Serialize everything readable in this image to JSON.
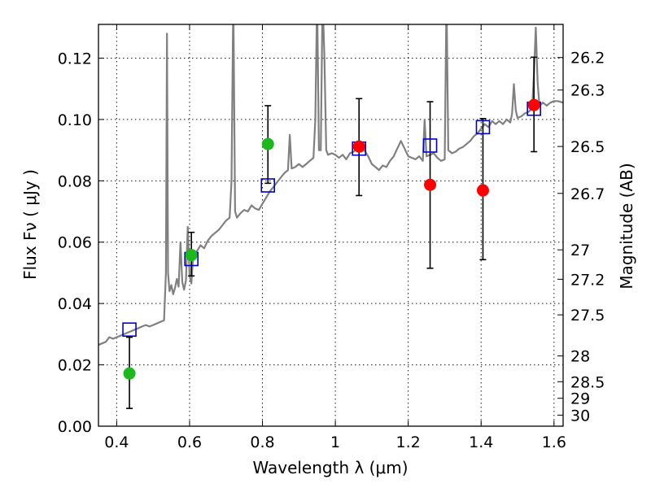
{
  "chart_data": {
    "type": "scatter",
    "title": "",
    "xlabel": "Wavelength  λ (μm)",
    "ylabel": "Flux  Fν  ( μJy )",
    "ylabel_right": "Magnitude (AB)",
    "xlim": [
      0.35,
      1.625
    ],
    "ylim": [
      0.0,
      0.131
    ],
    "grid": true,
    "x_ticks": [
      0.4,
      0.6,
      0.8,
      1.0,
      1.2,
      1.4,
      1.6
    ],
    "x_tick_labels": [
      "0.4",
      "0.6",
      "0.8",
      "1",
      "1.2",
      "1.4",
      "1.6"
    ],
    "y_ticks": [
      0.0,
      0.02,
      0.04,
      0.06,
      0.08,
      0.1,
      0.12
    ],
    "y_tick_labels": [
      "0.00",
      "0.02",
      "0.04",
      "0.06",
      "0.08",
      "0.10",
      "0.12"
    ],
    "right_ticks": [
      {
        "flux": 0.1202,
        "label": "26.2"
      },
      {
        "flux": 0.1096,
        "label": "26.3"
      },
      {
        "flux": 0.0912,
        "label": "26.5"
      },
      {
        "flux": 0.0759,
        "label": "26.7"
      },
      {
        "flux": 0.0575,
        "label": "27"
      },
      {
        "flux": 0.0479,
        "label": "27.2"
      },
      {
        "flux": 0.0363,
        "label": "27.5"
      },
      {
        "flux": 0.0229,
        "label": "28"
      },
      {
        "flux": 0.0145,
        "label": "28.5"
      },
      {
        "flux": 0.0091,
        "label": "29"
      },
      {
        "flux": 0.0036,
        "label": "30"
      }
    ],
    "colors": {
      "spectrum": "#808080",
      "model": "#0000cc",
      "green": "#1db81d",
      "red": "#ff0000",
      "errorbar": "#000000"
    },
    "series": [
      {
        "kind": "spectrum",
        "points": [
          [
            0.35,
            0.0265
          ],
          [
            0.36,
            0.027
          ],
          [
            0.37,
            0.0275
          ],
          [
            0.38,
            0.029
          ],
          [
            0.39,
            0.0285
          ],
          [
            0.4,
            0.029
          ],
          [
            0.41,
            0.0295
          ],
          [
            0.42,
            0.03
          ],
          [
            0.43,
            0.0305
          ],
          [
            0.44,
            0.031
          ],
          [
            0.45,
            0.0315
          ],
          [
            0.46,
            0.032
          ],
          [
            0.47,
            0.0325
          ],
          [
            0.48,
            0.033
          ],
          [
            0.49,
            0.0325
          ],
          [
            0.5,
            0.033
          ],
          [
            0.51,
            0.0335
          ],
          [
            0.52,
            0.034
          ],
          [
            0.53,
            0.0345
          ],
          [
            0.535,
            0.05
          ],
          [
            0.538,
            0.128
          ],
          [
            0.541,
            0.05
          ],
          [
            0.545,
            0.044
          ],
          [
            0.55,
            0.046
          ],
          [
            0.555,
            0.043
          ],
          [
            0.56,
            0.045
          ],
          [
            0.565,
            0.048
          ],
          [
            0.57,
            0.0455
          ],
          [
            0.575,
            0.06
          ],
          [
            0.58,
            0.047
          ],
          [
            0.585,
            0.0445
          ],
          [
            0.59,
            0.0475
          ],
          [
            0.595,
            0.065
          ],
          [
            0.6,
            0.049
          ],
          [
            0.605,
            0.0465
          ],
          [
            0.61,
            0.056
          ],
          [
            0.62,
            0.057
          ],
          [
            0.63,
            0.059
          ],
          [
            0.64,
            0.058
          ],
          [
            0.65,
            0.0605
          ],
          [
            0.66,
            0.062
          ],
          [
            0.67,
            0.063
          ],
          [
            0.68,
            0.064
          ],
          [
            0.69,
            0.0655
          ],
          [
            0.7,
            0.067
          ],
          [
            0.71,
            0.068
          ],
          [
            0.715,
            0.08
          ],
          [
            0.72,
            0.14
          ],
          [
            0.725,
            0.07
          ],
          [
            0.73,
            0.068
          ],
          [
            0.74,
            0.0695
          ],
          [
            0.75,
            0.0705
          ],
          [
            0.76,
            0.07
          ],
          [
            0.77,
            0.072
          ],
          [
            0.78,
            0.071
          ],
          [
            0.79,
            0.0705
          ],
          [
            0.8,
            0.0725
          ],
          [
            0.81,
            0.0745
          ],
          [
            0.82,
            0.0765
          ],
          [
            0.83,
            0.078
          ],
          [
            0.84,
            0.0795
          ],
          [
            0.85,
            0.081
          ],
          [
            0.86,
            0.0825
          ],
          [
            0.87,
            0.0835
          ],
          [
            0.875,
            0.095
          ],
          [
            0.88,
            0.084
          ],
          [
            0.89,
            0.0845
          ],
          [
            0.9,
            0.0855
          ],
          [
            0.91,
            0.0845
          ],
          [
            0.92,
            0.0855
          ],
          [
            0.93,
            0.0865
          ],
          [
            0.94,
            0.0875
          ],
          [
            0.945,
            0.1
          ],
          [
            0.95,
            0.14
          ],
          [
            0.955,
            0.09
          ],
          [
            0.96,
            0.09
          ],
          [
            0.965,
            0.14
          ],
          [
            0.97,
            0.12
          ],
          [
            0.975,
            0.09
          ],
          [
            0.98,
            0.0885
          ],
          [
            0.99,
            0.089
          ],
          [
            1.0,
            0.0885
          ],
          [
            1.01,
            0.0875
          ],
          [
            1.02,
            0.0885
          ],
          [
            1.03,
            0.087
          ],
          [
            1.04,
            0.089
          ],
          [
            1.05,
            0.0895
          ],
          [
            1.06,
            0.0905
          ],
          [
            1.07,
            0.0895
          ],
          [
            1.08,
            0.09
          ],
          [
            1.09,
            0.088
          ],
          [
            1.1,
            0.0855
          ],
          [
            1.11,
            0.0845
          ],
          [
            1.12,
            0.0835
          ],
          [
            1.13,
            0.085
          ],
          [
            1.14,
            0.0845
          ],
          [
            1.15,
            0.0865
          ],
          [
            1.16,
            0.088
          ],
          [
            1.17,
            0.0905
          ],
          [
            1.18,
            0.093
          ],
          [
            1.19,
            0.0905
          ],
          [
            1.2,
            0.088
          ],
          [
            1.21,
            0.0875
          ],
          [
            1.22,
            0.087
          ],
          [
            1.23,
            0.088
          ],
          [
            1.24,
            0.0865
          ],
          [
            1.245,
            0.1
          ],
          [
            1.25,
            0.088
          ],
          [
            1.26,
            0.0885
          ],
          [
            1.27,
            0.089
          ],
          [
            1.28,
            0.0875
          ],
          [
            1.29,
            0.0865
          ],
          [
            1.3,
            0.087
          ],
          [
            1.305,
            0.14
          ],
          [
            1.31,
            0.09
          ],
          [
            1.32,
            0.089
          ],
          [
            1.33,
            0.0895
          ],
          [
            1.34,
            0.0905
          ],
          [
            1.35,
            0.091
          ],
          [
            1.36,
            0.092
          ],
          [
            1.37,
            0.093
          ],
          [
            1.38,
            0.0945
          ],
          [
            1.39,
            0.0955
          ],
          [
            1.4,
            0.097
          ],
          [
            1.41,
            0.0985
          ],
          [
            1.42,
            0.0975
          ],
          [
            1.43,
            0.0995
          ],
          [
            1.44,
            0.0985
          ],
          [
            1.45,
            0.0995
          ],
          [
            1.46,
            0.0985
          ],
          [
            1.47,
            0.1
          ],
          [
            1.48,
            0.099
          ],
          [
            1.485,
            0.102
          ],
          [
            1.49,
            0.1115
          ],
          [
            1.495,
            0.103
          ],
          [
            1.5,
            0.1005
          ],
          [
            1.51,
            0.101
          ],
          [
            1.52,
            0.102
          ],
          [
            1.53,
            0.1025
          ],
          [
            1.54,
            0.1035
          ],
          [
            1.545,
            0.115
          ],
          [
            1.55,
            0.13
          ],
          [
            1.555,
            0.112
          ],
          [
            1.56,
            0.1045
          ],
          [
            1.57,
            0.1055
          ],
          [
            1.58,
            0.1045
          ],
          [
            1.59,
            0.1055
          ],
          [
            1.6,
            0.106
          ],
          [
            1.61,
            0.106
          ],
          [
            1.625,
            0.1055
          ]
        ]
      },
      {
        "kind": "model",
        "marker": "square",
        "points": [
          [
            0.435,
            0.0315
          ],
          [
            0.605,
            0.0545
          ],
          [
            0.815,
            0.0785
          ],
          [
            1.065,
            0.0905
          ],
          [
            1.26,
            0.0915
          ],
          [
            1.405,
            0.0975
          ],
          [
            1.545,
            0.1035
          ]
        ]
      },
      {
        "kind": "observed",
        "marker": "circle",
        "color": "green",
        "points": [
          {
            "x": 0.435,
            "y": 0.0172,
            "lo": 0.0058,
            "hi": 0.029
          },
          {
            "x": 0.605,
            "y": 0.0558,
            "lo": 0.049,
            "hi": 0.0632
          },
          {
            "x": 0.815,
            "y": 0.092,
            "lo": 0.0792,
            "hi": 0.1045
          }
        ]
      },
      {
        "kind": "observed",
        "marker": "circle",
        "color": "red",
        "points": [
          {
            "x": 1.065,
            "y": 0.0912,
            "lo": 0.0752,
            "hi": 0.1068
          },
          {
            "x": 1.26,
            "y": 0.0787,
            "lo": 0.0515,
            "hi": 0.1058
          },
          {
            "x": 1.405,
            "y": 0.0769,
            "lo": 0.0543,
            "hi": 0.1003
          },
          {
            "x": 1.545,
            "y": 0.1047,
            "lo": 0.0895,
            "hi": 0.1203
          }
        ]
      }
    ]
  }
}
